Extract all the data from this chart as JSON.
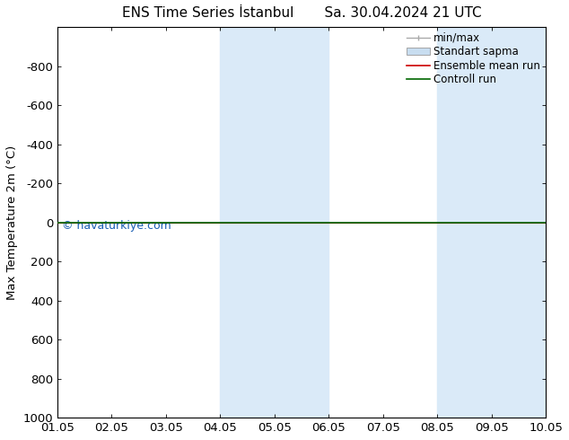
{
  "title": "ENS Time Series İstanbul       Sa. 30.04.2024 21 UTC",
  "ylabel": "Max Temperature 2m (°C)",
  "xlabel": "",
  "ylim_bottom": -1000,
  "ylim_top": 1000,
  "yticks": [
    -800,
    -600,
    -400,
    -200,
    0,
    200,
    400,
    600,
    800,
    1000
  ],
  "xtick_labels": [
    "01.05",
    "02.05",
    "03.05",
    "04.05",
    "05.05",
    "06.05",
    "07.05",
    "08.05",
    "09.05",
    "10.05"
  ],
  "xtick_positions": [
    0,
    1,
    2,
    3,
    4,
    5,
    6,
    7,
    8,
    9
  ],
  "xlim": [
    0,
    9
  ],
  "shaded_regions": [
    [
      3,
      4
    ],
    [
      4,
      5
    ],
    [
      7,
      8
    ],
    [
      8,
      9
    ]
  ],
  "shaded_color": "#daeaf8",
  "line_y": 0,
  "watermark": "© havaturkiye.com",
  "watermark_color": "#1a5fb4",
  "legend_entries": [
    "min/max",
    "Standart sapma",
    "Ensemble mean run",
    "Controll run"
  ],
  "minmax_color": "#aaaaaa",
  "stddev_color": "#c8ddf0",
  "ensemble_color": "#cc0000",
  "control_color": "#006600",
  "background_color": "#ffffff",
  "border_color": "#000000",
  "font_size": 9.5,
  "title_font_size": 11
}
